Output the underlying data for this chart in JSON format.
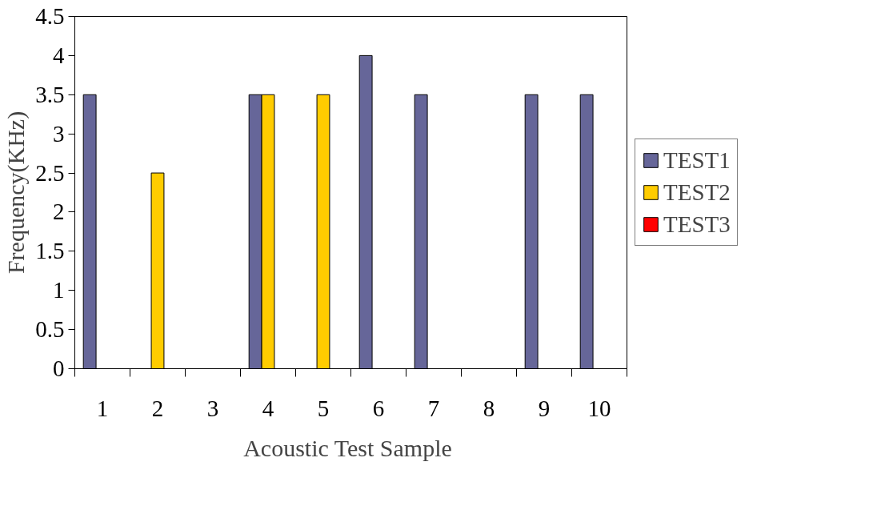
{
  "chart_data": {
    "type": "bar",
    "xlabel": "Acoustic Test  Sample",
    "ylabel": "Frequency(KHz)",
    "categories": [
      "1",
      "2",
      "3",
      "4",
      "5",
      "6",
      "7",
      "8",
      "9",
      "10"
    ],
    "series": [
      {
        "name": "TEST1",
        "color": "#666699",
        "values": [
          3.5,
          null,
          null,
          3.5,
          null,
          4,
          3.5,
          null,
          3.5,
          3.5
        ]
      },
      {
        "name": "TEST2",
        "color": "#ffcc00",
        "values": [
          null,
          2.5,
          null,
          3.5,
          3.5,
          null,
          null,
          null,
          null,
          null
        ]
      },
      {
        "name": "TEST3",
        "color": "#ff0000",
        "values": [
          null,
          null,
          null,
          null,
          null,
          null,
          null,
          null,
          null,
          null
        ]
      }
    ],
    "ylim": [
      0,
      4.5
    ],
    "yticks": [
      0,
      0.5,
      1,
      1.5,
      2,
      2.5,
      3,
      3.5,
      4,
      4.5
    ],
    "grid": false,
    "legend": "right"
  }
}
